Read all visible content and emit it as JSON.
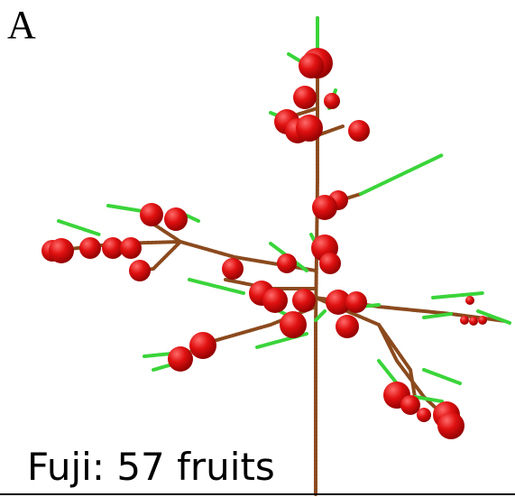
{
  "panel_label": "A",
  "caption": "Fuji: 57 fruits"
}
